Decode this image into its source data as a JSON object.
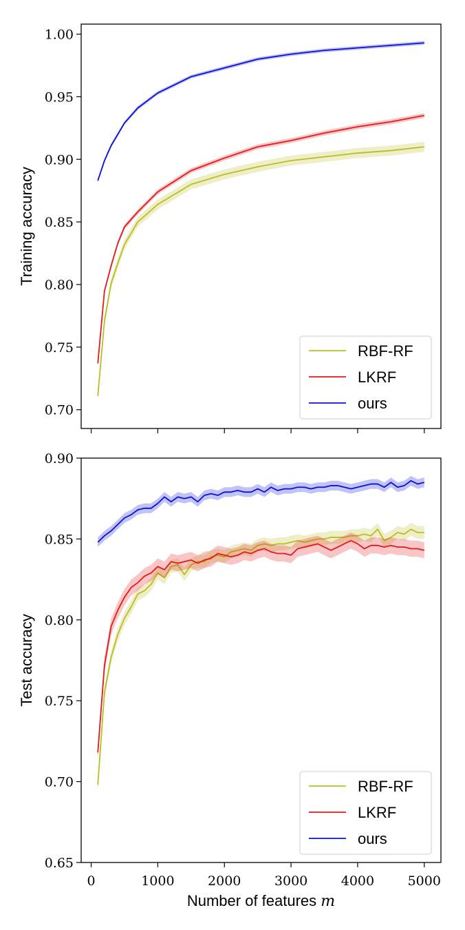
{
  "chart_data": [
    {
      "type": "line",
      "ylabel": "Training accuracy",
      "xlabel": "",
      "xlim": [
        -150,
        5250
      ],
      "ylim": [
        0.685,
        1.008
      ],
      "xticks": [
        0,
        1000,
        2000,
        3000,
        4000,
        5000
      ],
      "xtick_labels": [
        "",
        "",
        "",
        "",
        "",
        ""
      ],
      "yticks": [
        0.7,
        0.75,
        0.8,
        0.85,
        0.9,
        0.95,
        1.0
      ],
      "ytick_labels": [
        "0.70",
        "0.75",
        "0.80",
        "0.85",
        "0.90",
        "0.95",
        "1.00"
      ],
      "legend_position": "bottom-right",
      "legend": [
        "RBF-RF",
        "LKRF",
        "ours"
      ],
      "x": [
        100,
        200,
        300,
        400,
        500,
        700,
        1000,
        1500,
        2000,
        2500,
        3000,
        3500,
        4000,
        4500,
        5000
      ],
      "series": [
        {
          "name": "RBF-RF",
          "color": "#bcbd22",
          "band": 0.004,
          "values": [
            0.711,
            0.771,
            0.801,
            0.817,
            0.832,
            0.85,
            0.864,
            0.88,
            0.888,
            0.894,
            0.899,
            0.902,
            0.905,
            0.907,
            0.91
          ]
        },
        {
          "name": "LKRF",
          "color": "#e31a1c",
          "band": 0.002,
          "values": [
            0.737,
            0.795,
            0.815,
            0.833,
            0.846,
            0.858,
            0.874,
            0.891,
            0.901,
            0.91,
            0.915,
            0.921,
            0.926,
            0.93,
            0.935
          ]
        },
        {
          "name": "ours",
          "color": "#0a10d6",
          "band": 0.0015,
          "values": [
            0.883,
            0.899,
            0.911,
            0.92,
            0.929,
            0.941,
            0.953,
            0.966,
            0.973,
            0.98,
            0.984,
            0.987,
            0.989,
            0.991,
            0.993
          ]
        }
      ]
    },
    {
      "type": "line",
      "ylabel": "Test accuracy",
      "xlabel": "Number of features",
      "xlabel_var": "m",
      "xlim": [
        -150,
        5250
      ],
      "ylim": [
        0.65,
        0.9
      ],
      "xticks": [
        0,
        1000,
        2000,
        3000,
        4000,
        5000
      ],
      "xtick_labels": [
        "0",
        "1000",
        "2000",
        "3000",
        "4000",
        "5000"
      ],
      "yticks": [
        0.65,
        0.7,
        0.75,
        0.8,
        0.85,
        0.9
      ],
      "ytick_labels": [
        "0.65",
        "0.70",
        "0.75",
        "0.80",
        "0.85",
        "0.90"
      ],
      "legend_position": "bottom-right",
      "legend": [
        "RBF-RF",
        "LKRF",
        "ours"
      ],
      "x": [
        100,
        200,
        300,
        400,
        500,
        600,
        700,
        800,
        900,
        1000,
        1100,
        1200,
        1300,
        1400,
        1500,
        1600,
        1700,
        1800,
        1900,
        2000,
        2100,
        2200,
        2300,
        2400,
        2500,
        2600,
        2700,
        2800,
        2900,
        3000,
        3100,
        3200,
        3300,
        3400,
        3500,
        3600,
        3700,
        3800,
        3900,
        4000,
        4100,
        4200,
        4300,
        4400,
        4500,
        4600,
        4700,
        4800,
        4900,
        5000
      ],
      "series": [
        {
          "name": "RBF-RF",
          "color": "#bcbd22",
          "band": 0.004,
          "values": [
            0.698,
            0.755,
            0.777,
            0.791,
            0.801,
            0.808,
            0.816,
            0.818,
            0.822,
            0.829,
            0.826,
            0.833,
            0.834,
            0.828,
            0.834,
            0.836,
            0.836,
            0.839,
            0.84,
            0.839,
            0.842,
            0.843,
            0.844,
            0.843,
            0.846,
            0.847,
            0.846,
            0.847,
            0.847,
            0.848,
            0.849,
            0.848,
            0.849,
            0.85,
            0.85,
            0.851,
            0.851,
            0.851,
            0.852,
            0.852,
            0.853,
            0.852,
            0.856,
            0.849,
            0.851,
            0.854,
            0.853,
            0.856,
            0.854,
            0.854
          ]
        },
        {
          "name": "LKRF",
          "color": "#e31a1c",
          "band": 0.005,
          "values": [
            0.718,
            0.772,
            0.796,
            0.806,
            0.814,
            0.82,
            0.823,
            0.827,
            0.829,
            0.833,
            0.831,
            0.836,
            0.835,
            0.836,
            0.837,
            0.835,
            0.837,
            0.838,
            0.841,
            0.84,
            0.839,
            0.84,
            0.842,
            0.841,
            0.843,
            0.844,
            0.842,
            0.841,
            0.841,
            0.84,
            0.844,
            0.845,
            0.846,
            0.847,
            0.845,
            0.843,
            0.845,
            0.847,
            0.849,
            0.847,
            0.844,
            0.846,
            0.846,
            0.845,
            0.846,
            0.845,
            0.845,
            0.844,
            0.844,
            0.843
          ]
        },
        {
          "name": "ours",
          "color": "#0a10d6",
          "band": 0.003,
          "values": [
            0.848,
            0.852,
            0.855,
            0.859,
            0.863,
            0.865,
            0.868,
            0.869,
            0.869,
            0.872,
            0.876,
            0.873,
            0.876,
            0.875,
            0.876,
            0.873,
            0.877,
            0.878,
            0.877,
            0.879,
            0.879,
            0.88,
            0.879,
            0.879,
            0.881,
            0.879,
            0.882,
            0.88,
            0.881,
            0.881,
            0.882,
            0.882,
            0.881,
            0.882,
            0.882,
            0.883,
            0.883,
            0.882,
            0.881,
            0.882,
            0.883,
            0.884,
            0.884,
            0.882,
            0.885,
            0.882,
            0.883,
            0.886,
            0.884,
            0.885
          ]
        }
      ]
    }
  ]
}
